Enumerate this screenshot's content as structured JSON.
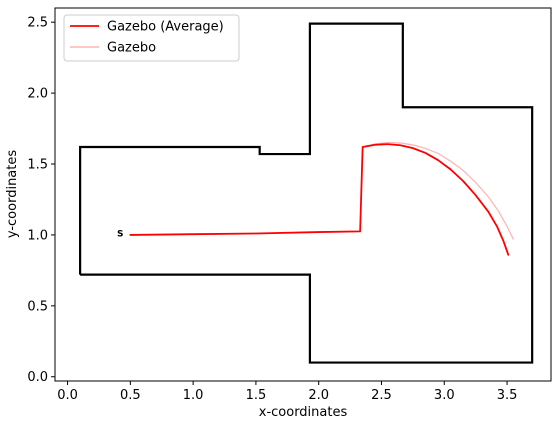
{
  "chart_data": {
    "type": "line",
    "xlabel": "x-coordinates",
    "ylabel": "y-coordinates",
    "xlim": [
      -0.1,
      3.85
    ],
    "ylim": [
      -0.03,
      2.6
    ],
    "xticks": [
      0.0,
      0.5,
      1.0,
      1.5,
      2.0,
      2.5,
      3.0,
      3.5
    ],
    "yticks": [
      0.0,
      0.5,
      1.0,
      1.5,
      2.0,
      2.5
    ],
    "xtick_labels": [
      "0.0",
      "0.5",
      "1.0",
      "1.5",
      "2.0",
      "2.5",
      "3.0",
      "3.5"
    ],
    "ytick_labels": [
      "0.0",
      "0.5",
      "1.0",
      "1.5",
      "2.0",
      "2.5"
    ],
    "grid": false,
    "legend_position": "top-left",
    "legend": [
      {
        "label": "Gazebo (Average)",
        "color": "#ff0000"
      },
      {
        "label": "Gazebo",
        "color": "#ffb3b3"
      }
    ],
    "start_marker": {
      "label": "S",
      "x": 0.42,
      "y": 1.01
    },
    "walls": {
      "color": "#000000",
      "points": [
        [
          0.1,
          0.72
        ],
        [
          0.1,
          1.62
        ],
        [
          1.53,
          1.62
        ],
        [
          1.53,
          1.57
        ],
        [
          1.93,
          1.57
        ],
        [
          1.93,
          2.49
        ],
        [
          2.67,
          2.49
        ],
        [
          2.67,
          1.9
        ],
        [
          3.7,
          1.9
        ],
        [
          3.7,
          0.1
        ],
        [
          1.93,
          0.1
        ],
        [
          1.93,
          0.72
        ],
        [
          0.1,
          0.72
        ]
      ]
    },
    "series": [
      {
        "name": "Gazebo",
        "color": "#ffb3b3",
        "points": [
          [
            2.35,
            1.62
          ],
          [
            2.45,
            1.642
          ],
          [
            2.55,
            1.652
          ],
          [
            2.65,
            1.648
          ],
          [
            2.75,
            1.635
          ],
          [
            2.85,
            1.61
          ],
          [
            2.95,
            1.575
          ],
          [
            3.05,
            1.52
          ],
          [
            3.15,
            1.455
          ],
          [
            3.25,
            1.37
          ],
          [
            3.35,
            1.27
          ],
          [
            3.43,
            1.17
          ],
          [
            3.5,
            1.06
          ],
          [
            3.55,
            0.97
          ]
        ]
      },
      {
        "name": "Gazebo (Average)",
        "color": "#ff0000",
        "points": [
          [
            0.5,
            1.0
          ],
          [
            1.0,
            1.005
          ],
          [
            1.5,
            1.01
          ],
          [
            2.0,
            1.02
          ],
          [
            2.33,
            1.025
          ],
          [
            2.35,
            1.62
          ],
          [
            2.45,
            1.636
          ],
          [
            2.55,
            1.64
          ],
          [
            2.65,
            1.632
          ],
          [
            2.75,
            1.612
          ],
          [
            2.85,
            1.578
          ],
          [
            2.95,
            1.528
          ],
          [
            3.05,
            1.462
          ],
          [
            3.15,
            1.38
          ],
          [
            3.25,
            1.28
          ],
          [
            3.35,
            1.165
          ],
          [
            3.42,
            1.06
          ],
          [
            3.47,
            0.96
          ],
          [
            3.51,
            0.86
          ]
        ]
      }
    ]
  }
}
